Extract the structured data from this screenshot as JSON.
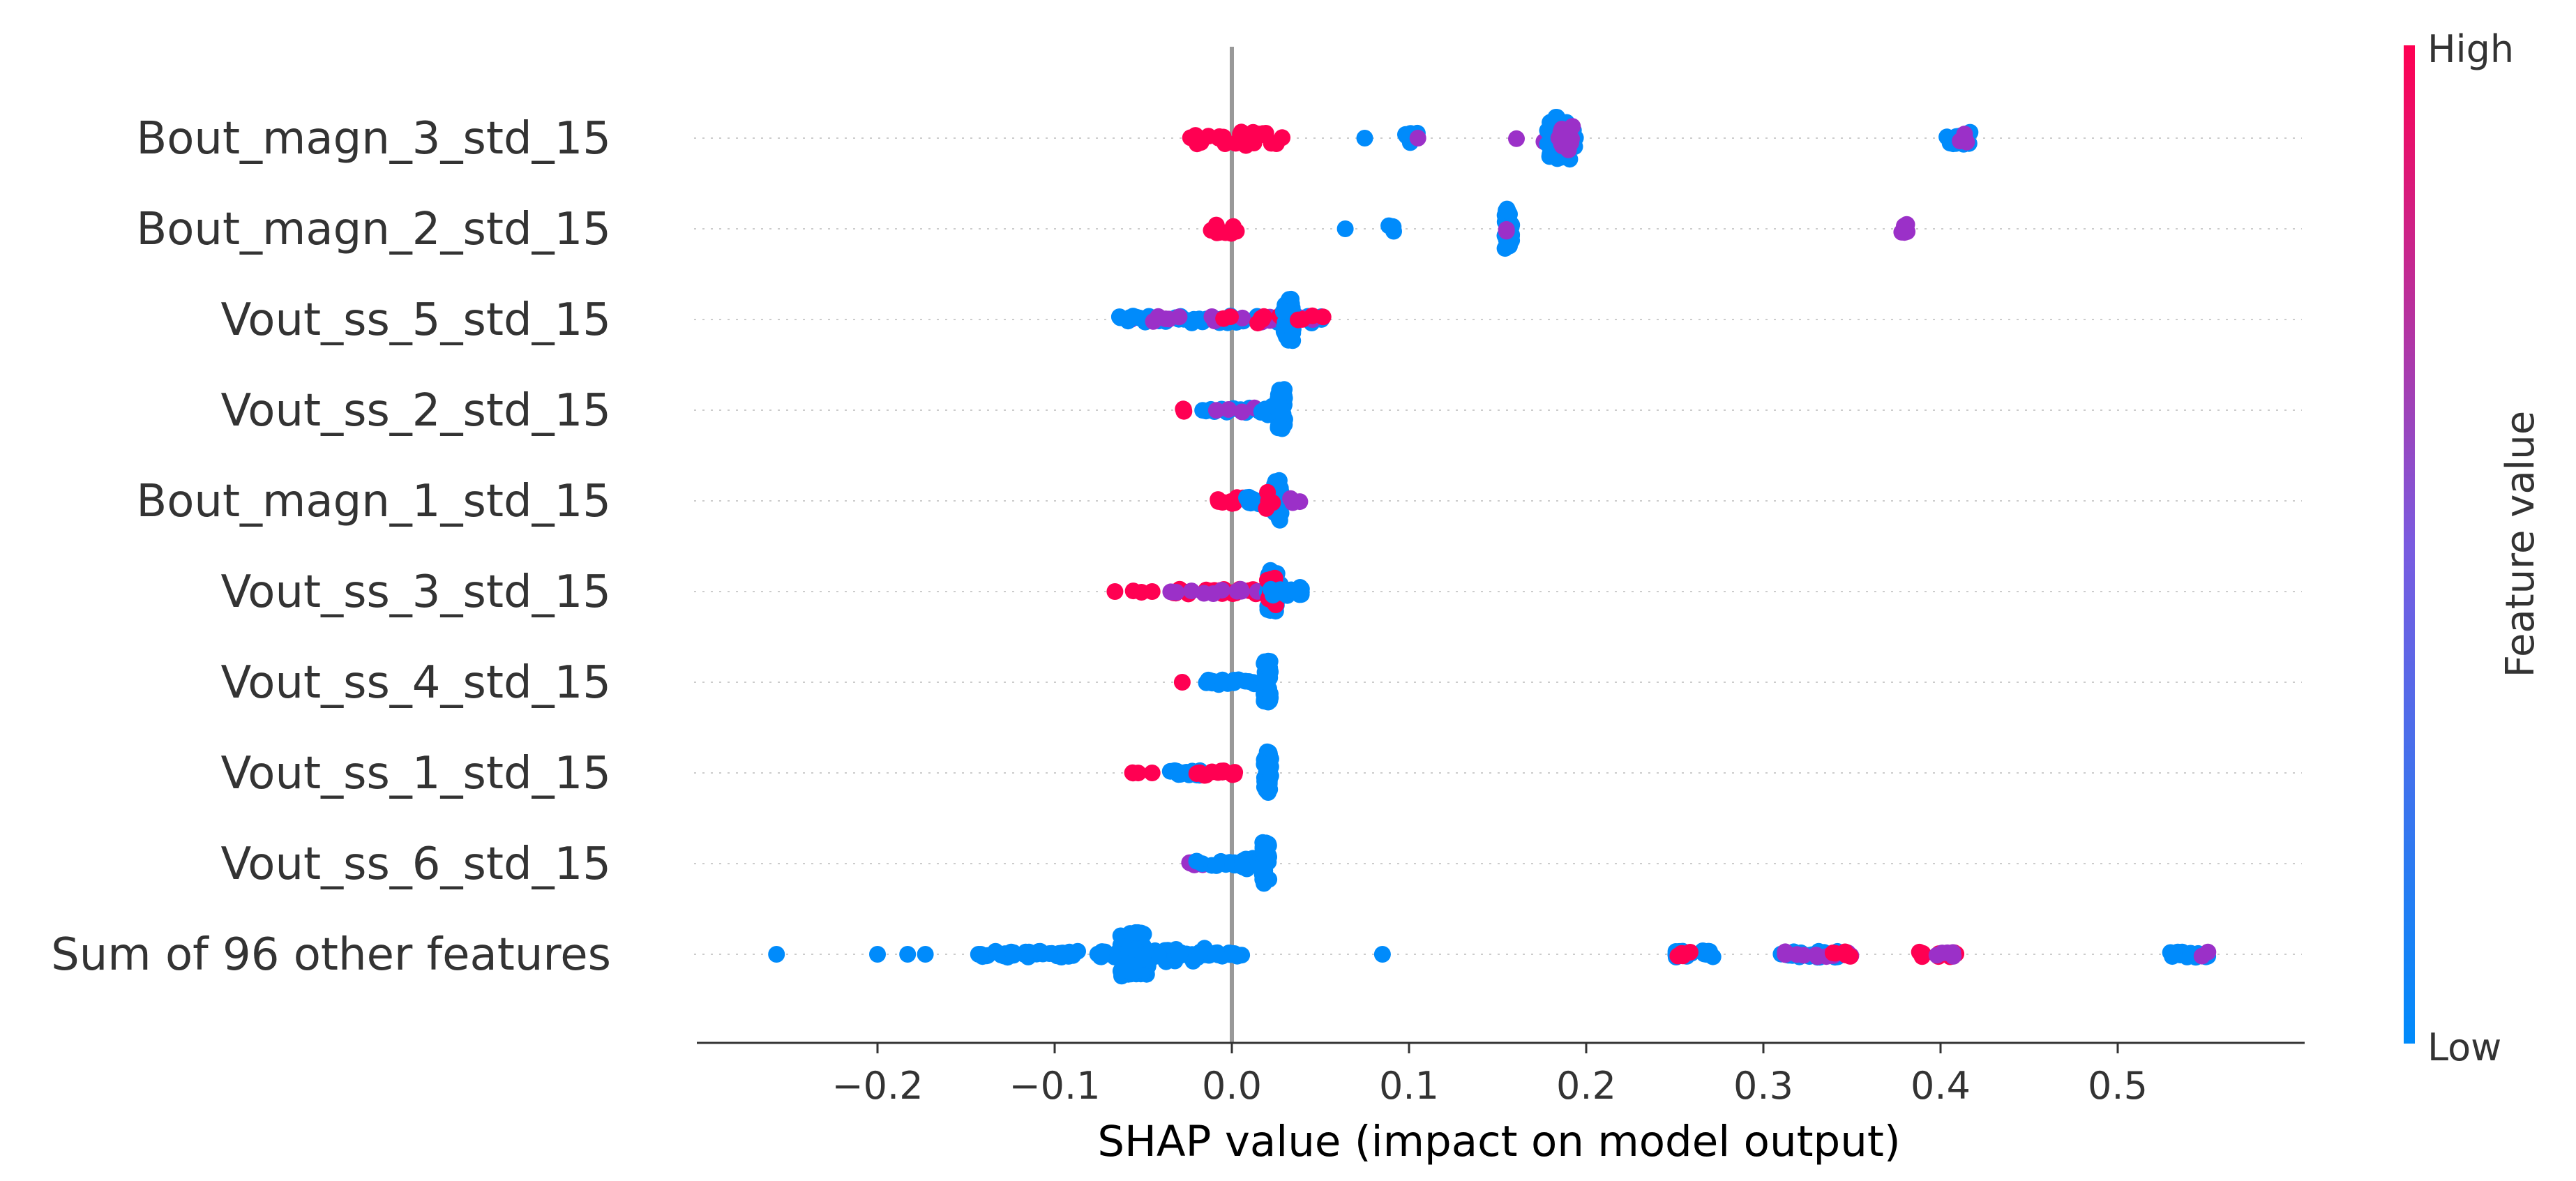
{
  "chart_data": {
    "type": "scatter",
    "subtype": "shap-beeswarm",
    "xlabel": "SHAP value (impact on model output)",
    "x_ticks": [
      "−0.2",
      "−0.1",
      "0.0",
      "0.1",
      "0.2",
      "0.3",
      "0.4",
      "0.5"
    ],
    "x_tick_values": [
      -0.2,
      -0.1,
      0.0,
      0.1,
      0.2,
      0.3,
      0.4,
      0.5
    ],
    "xlim": [
      -0.3,
      0.6
    ],
    "zero_line": 0.0,
    "colorbar": {
      "title": "Feature value",
      "high_label": "High",
      "low_label": "Low",
      "high_color": "#ff0052",
      "low_color": "#008bfb"
    },
    "colors": {
      "high": "#ff0052",
      "mid": "#9b30c8",
      "low": "#008bfb",
      "zero_line": "#999999",
      "grid": "#cccccc"
    },
    "features": [
      {
        "name": "Bout_magn_3_std_15",
        "clusters": [
          {
            "x": 0.0,
            "n": 28,
            "spread": 0.3,
            "width": 0.03,
            "color": "high"
          },
          {
            "x": 0.075,
            "n": 1,
            "spread": 0.0,
            "width": 0.0,
            "color": "low"
          },
          {
            "x": 0.102,
            "n": 6,
            "spread": 0.2,
            "width": 0.008,
            "color": "low"
          },
          {
            "x": 0.105,
            "n": 1,
            "spread": 0.0,
            "width": 0.0,
            "color": "mid"
          },
          {
            "x": 0.175,
            "n": 4,
            "spread": 0.2,
            "width": 0.015,
            "color": "mid"
          },
          {
            "x": 0.186,
            "n": 50,
            "spread": 0.85,
            "width": 0.008,
            "color": "low"
          },
          {
            "x": 0.189,
            "n": 10,
            "spread": 0.5,
            "width": 0.006,
            "color": "mid"
          },
          {
            "x": 0.41,
            "n": 16,
            "spread": 0.25,
            "width": 0.007,
            "color": "low"
          },
          {
            "x": 0.413,
            "n": 4,
            "spread": 0.2,
            "width": 0.005,
            "color": "mid"
          }
        ]
      },
      {
        "name": "Bout_magn_2_std_15",
        "clusters": [
          {
            "x": -0.004,
            "n": 10,
            "spread": 0.2,
            "width": 0.008,
            "color": "high"
          },
          {
            "x": 0.064,
            "n": 1,
            "spread": 0.0,
            "width": 0.0,
            "color": "low"
          },
          {
            "x": 0.09,
            "n": 4,
            "spread": 0.15,
            "width": 0.002,
            "color": "low"
          },
          {
            "x": 0.156,
            "n": 40,
            "spread": 0.8,
            "width": 0.002,
            "color": "low"
          },
          {
            "x": 0.155,
            "n": 2,
            "spread": 0.1,
            "width": 0.0,
            "color": "mid"
          },
          {
            "x": 0.38,
            "n": 6,
            "spread": 0.2,
            "width": 0.002,
            "color": "mid"
          }
        ]
      },
      {
        "name": "Vout_ss_5_std_15",
        "clusters": [
          {
            "x": -0.057,
            "n": 1,
            "spread": 0.0,
            "width": 0.0,
            "color": "mid"
          },
          {
            "x": -0.005,
            "n": 45,
            "spread": 0.15,
            "width": 0.06,
            "color": "low"
          },
          {
            "x": -0.005,
            "n": 18,
            "spread": 0.12,
            "width": 0.055,
            "color": "mid"
          },
          {
            "x": 0.025,
            "n": 12,
            "spread": 0.15,
            "width": 0.03,
            "color": "high"
          },
          {
            "x": 0.032,
            "n": 40,
            "spread": 0.85,
            "width": 0.003,
            "color": "low"
          },
          {
            "x": 0.04,
            "n": 2,
            "spread": 0.05,
            "width": 0.004,
            "color": "high"
          }
        ]
      },
      {
        "name": "Vout_ss_2_std_15",
        "clusters": [
          {
            "x": -0.03,
            "n": 3,
            "spread": 0.05,
            "width": 0.003,
            "color": "high"
          },
          {
            "x": 0.0,
            "n": 20,
            "spread": 0.1,
            "width": 0.02,
            "color": "low"
          },
          {
            "x": 0.0,
            "n": 4,
            "spread": 0.1,
            "width": 0.015,
            "color": "mid"
          },
          {
            "x": 0.02,
            "n": 10,
            "spread": 0.2,
            "width": 0.004,
            "color": "low"
          },
          {
            "x": 0.028,
            "n": 40,
            "spread": 0.85,
            "width": 0.002,
            "color": "low"
          }
        ]
      },
      {
        "name": "Bout_magn_1_std_15",
        "clusters": [
          {
            "x": 0.0,
            "n": 8,
            "spread": 0.15,
            "width": 0.008,
            "color": "high"
          },
          {
            "x": 0.02,
            "n": 30,
            "spread": 0.15,
            "width": 0.012,
            "color": "low"
          },
          {
            "x": 0.026,
            "n": 30,
            "spread": 0.85,
            "width": 0.002,
            "color": "low"
          },
          {
            "x": 0.022,
            "n": 4,
            "spread": 0.4,
            "width": 0.003,
            "color": "high"
          },
          {
            "x": 0.036,
            "n": 3,
            "spread": 0.1,
            "width": 0.003,
            "color": "mid"
          }
        ]
      },
      {
        "name": "Vout_ss_3_std_15",
        "clusters": [
          {
            "x": -0.066,
            "n": 1,
            "spread": 0.0,
            "width": 0.0,
            "color": "high"
          },
          {
            "x": -0.055,
            "n": 2,
            "spread": 0.05,
            "width": 0.004,
            "color": "high"
          },
          {
            "x": -0.045,
            "n": 1,
            "spread": 0.0,
            "width": 0.0,
            "color": "high"
          },
          {
            "x": -0.01,
            "n": 30,
            "spread": 0.1,
            "width": 0.025,
            "color": "high"
          },
          {
            "x": -0.005,
            "n": 12,
            "spread": 0.1,
            "width": 0.03,
            "color": "mid"
          },
          {
            "x": 0.024,
            "n": 45,
            "spread": 0.85,
            "width": 0.004,
            "color": "low"
          },
          {
            "x": 0.022,
            "n": 15,
            "spread": 0.6,
            "width": 0.003,
            "color": "high"
          },
          {
            "x": 0.03,
            "n": 15,
            "spread": 0.2,
            "width": 0.01,
            "color": "low"
          }
        ]
      },
      {
        "name": "Vout_ss_4_std_15",
        "clusters": [
          {
            "x": -0.028,
            "n": 1,
            "spread": 0.0,
            "width": 0.0,
            "color": "high"
          },
          {
            "x": 0.0,
            "n": 20,
            "spread": 0.1,
            "width": 0.015,
            "color": "low"
          },
          {
            "x": 0.02,
            "n": 45,
            "spread": 0.85,
            "width": 0.002,
            "color": "low"
          }
        ]
      },
      {
        "name": "Vout_ss_1_std_15",
        "clusters": [
          {
            "x": -0.055,
            "n": 3,
            "spread": 0.05,
            "width": 0.006,
            "color": "high"
          },
          {
            "x": -0.045,
            "n": 1,
            "spread": 0.0,
            "width": 0.0,
            "color": "high"
          },
          {
            "x": -0.025,
            "n": 15,
            "spread": 0.1,
            "width": 0.01,
            "color": "low"
          },
          {
            "x": -0.01,
            "n": 15,
            "spread": 0.1,
            "width": 0.012,
            "color": "high"
          },
          {
            "x": 0.02,
            "n": 45,
            "spread": 0.85,
            "width": 0.002,
            "color": "low"
          }
        ]
      },
      {
        "name": "Vout_ss_6_std_15",
        "clusters": [
          {
            "x": -0.02,
            "n": 6,
            "spread": 0.1,
            "width": 0.004,
            "color": "mid"
          },
          {
            "x": -0.005,
            "n": 20,
            "spread": 0.1,
            "width": 0.015,
            "color": "low"
          },
          {
            "x": 0.01,
            "n": 15,
            "spread": 0.25,
            "width": 0.006,
            "color": "low"
          },
          {
            "x": 0.019,
            "n": 40,
            "spread": 0.85,
            "width": 0.002,
            "color": "low"
          }
        ]
      },
      {
        "name": "Sum of 96 other features",
        "clusters": [
          {
            "x": -0.257,
            "n": 1,
            "spread": 0.0,
            "width": 0.0,
            "color": "low"
          },
          {
            "x": -0.2,
            "n": 1,
            "spread": 0.0,
            "width": 0.0,
            "color": "low"
          },
          {
            "x": -0.183,
            "n": 1,
            "spread": 0.0,
            "width": 0.0,
            "color": "low"
          },
          {
            "x": -0.173,
            "n": 1,
            "spread": 0.0,
            "width": 0.0,
            "color": "low"
          },
          {
            "x": -0.143,
            "n": 1,
            "spread": 0.0,
            "width": 0.0,
            "color": "low"
          },
          {
            "x": -0.127,
            "n": 1,
            "spread": 0.0,
            "width": 0.0,
            "color": "low"
          },
          {
            "x": -0.09,
            "n": 60,
            "spread": 0.12,
            "width": 0.055,
            "color": "low"
          },
          {
            "x": -0.055,
            "n": 90,
            "spread": 0.9,
            "width": 0.008,
            "color": "low"
          },
          {
            "x": -0.035,
            "n": 40,
            "spread": 0.3,
            "width": 0.02,
            "color": "low"
          },
          {
            "x": -0.01,
            "n": 20,
            "spread": 0.1,
            "width": 0.02,
            "color": "low"
          },
          {
            "x": 0.085,
            "n": 1,
            "spread": 0.0,
            "width": 0.0,
            "color": "low"
          },
          {
            "x": 0.26,
            "n": 18,
            "spread": 0.15,
            "width": 0.012,
            "color": "low"
          },
          {
            "x": 0.255,
            "n": 4,
            "spread": 0.1,
            "width": 0.004,
            "color": "high"
          },
          {
            "x": 0.33,
            "n": 30,
            "spread": 0.12,
            "width": 0.02,
            "color": "low"
          },
          {
            "x": 0.33,
            "n": 12,
            "spread": 0.1,
            "width": 0.02,
            "color": "mid"
          },
          {
            "x": 0.345,
            "n": 5,
            "spread": 0.1,
            "width": 0.008,
            "color": "high"
          },
          {
            "x": 0.4,
            "n": 8,
            "spread": 0.1,
            "width": 0.012,
            "color": "high"
          },
          {
            "x": 0.403,
            "n": 5,
            "spread": 0.1,
            "width": 0.006,
            "color": "mid"
          },
          {
            "x": 0.54,
            "n": 14,
            "spread": 0.12,
            "width": 0.012,
            "color": "low"
          },
          {
            "x": 0.55,
            "n": 2,
            "spread": 0.1,
            "width": 0.003,
            "color": "mid"
          }
        ]
      }
    ]
  }
}
